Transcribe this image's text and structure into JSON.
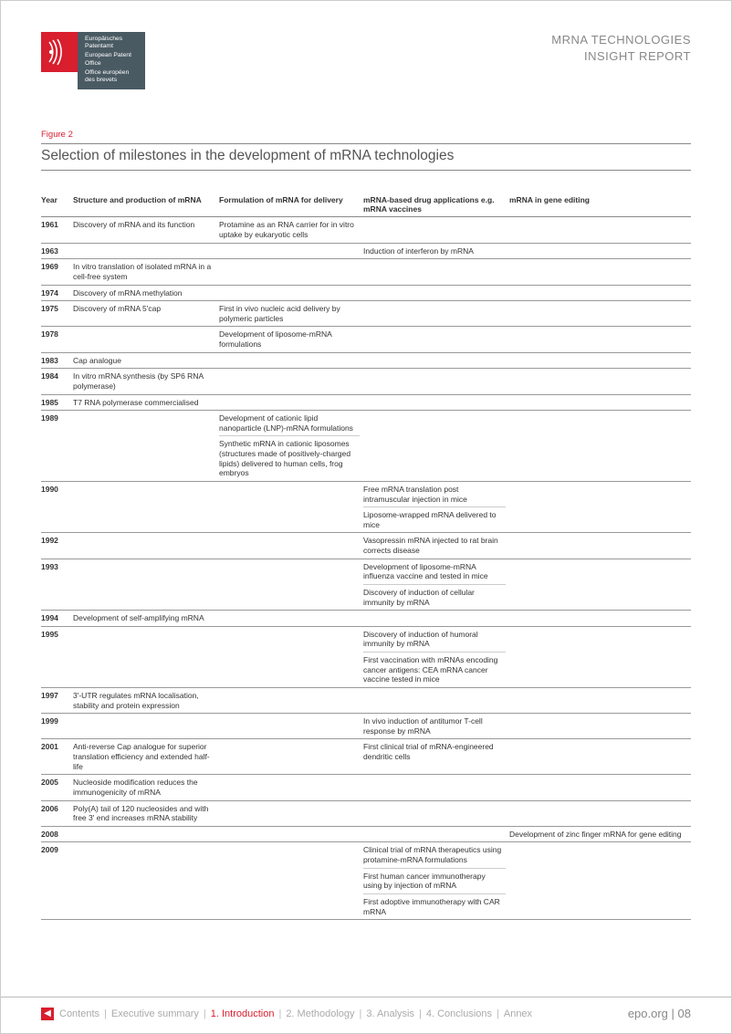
{
  "header": {
    "logo_text_de": "Europäisches Patentamt",
    "logo_text_en": "European Patent Office",
    "logo_text_fr": "Office européen des brevets",
    "title_line1": "MRNA TECHNOLOGIES",
    "title_line2": "INSIGHT REPORT"
  },
  "figure": {
    "label": "Figure 2",
    "title": "Selection of milestones in the development of mRNA technologies"
  },
  "table": {
    "columns": {
      "year": "Year",
      "col_a": "Structure and production of mRNA",
      "col_b": "Formulation of mRNA for delivery",
      "col_c": "mRNA-based drug applications e.g. mRNA vaccines",
      "col_d": "mRNA in gene editing"
    },
    "rows": [
      {
        "year": "1961",
        "a": "Discovery of mRNA and its function",
        "b": "Protamine as an RNA carrier for in vitro uptake by eukaryotic cells",
        "c": "",
        "d": ""
      },
      {
        "year": "1963",
        "a": "",
        "b": "",
        "c": "Induction of interferon by mRNA",
        "d": ""
      },
      {
        "year": "1969",
        "a": "In vitro translation of isolated mRNA in a cell-free system",
        "b": "",
        "c": "",
        "d": ""
      },
      {
        "year": "1974",
        "a": "Discovery of mRNA methylation",
        "b": "",
        "c": "",
        "d": ""
      },
      {
        "year": "1975",
        "a": "Discovery of mRNA 5'cap",
        "b": "First in vivo nucleic acid delivery by polymeric particles",
        "c": "",
        "d": ""
      },
      {
        "year": "1978",
        "a": "",
        "b": "Development of liposome-mRNA formulations",
        "c": "",
        "d": ""
      },
      {
        "year": "1983",
        "a": "Cap analogue",
        "b": "",
        "c": "",
        "d": ""
      },
      {
        "year": "1984",
        "a": "In vitro mRNA synthesis (by SP6 RNA polymerase)",
        "b": "",
        "c": "",
        "d": ""
      },
      {
        "year": "1985",
        "a": "T7 RNA polymerase commercialised",
        "b": "",
        "c": "",
        "d": ""
      },
      {
        "year": "1989",
        "a": "",
        "b": "Development of cationic lipid nanoparticle (LNP)-mRNA formulations",
        "b2": "Synthetic mRNA in cationic liposomes (structures made of positively-charged lipids) delivered to human cells, frog embryos",
        "c": "",
        "d": ""
      },
      {
        "year": "1990",
        "a": "",
        "b": "",
        "c": "Free mRNA translation post intramuscular injection in mice",
        "c2": "Liposome-wrapped mRNA delivered to mice",
        "d": ""
      },
      {
        "year": "1992",
        "a": "",
        "b": "",
        "c": "Vasopressin mRNA injected to rat brain corrects disease",
        "d": ""
      },
      {
        "year": "1993",
        "a": "",
        "b": "",
        "c": "Development of liposome-mRNA influenza vaccine and tested in mice",
        "c2": "Discovery of induction of cellular immunity by mRNA",
        "d": ""
      },
      {
        "year": "1994",
        "a": "Development of self-amplifying mRNA",
        "b": "",
        "c": "",
        "d": ""
      },
      {
        "year": "1995",
        "a": "",
        "b": "",
        "c": "Discovery of induction of humoral immunity by mRNA",
        "c2": "First vaccination with mRNAs encoding cancer antigens: CEA mRNA cancer vaccine tested in mice",
        "d": ""
      },
      {
        "year": "1997",
        "a": "3'-UTR regulates mRNA localisation, stability and protein expression",
        "b": "",
        "c": "",
        "d": ""
      },
      {
        "year": "1999",
        "a": "",
        "b": "",
        "c": "In vivo induction of antitumor T-cell response by mRNA",
        "d": ""
      },
      {
        "year": "2001",
        "a": "Anti-reverse Cap analogue for superior translation efficiency and extended half-life",
        "b": "",
        "c": "First clinical trial of mRNA-engineered dendritic cells",
        "d": ""
      },
      {
        "year": "2005",
        "a": "Nucleoside modification reduces the immunogenicity of mRNA",
        "b": "",
        "c": "",
        "d": ""
      },
      {
        "year": "2006",
        "a": "Poly(A) tail of 120 nucleosides and with free 3' end increases mRNA stability",
        "b": "",
        "c": "",
        "d": ""
      },
      {
        "year": "2008",
        "a": "",
        "b": "",
        "c": "",
        "d": "Development of zinc finger mRNA for gene editing"
      },
      {
        "year": "2009",
        "a": "",
        "b": "",
        "c": "Clinical trial of mRNA therapeutics using protamine-mRNA formulations",
        "c2": "First human cancer immunotherapy using by injection of mRNA",
        "c3": "First adoptive immunotherapy with CAR mRNA",
        "d": ""
      }
    ]
  },
  "footer": {
    "nav": {
      "contents": "Contents",
      "exec": "Executive summary",
      "intro": "1. Introduction",
      "method": "2. Methodology",
      "analysis": "3. Analysis",
      "conclusions": "4. Conclusions",
      "annex": "Annex"
    },
    "site": "epo.org",
    "page": "08"
  }
}
